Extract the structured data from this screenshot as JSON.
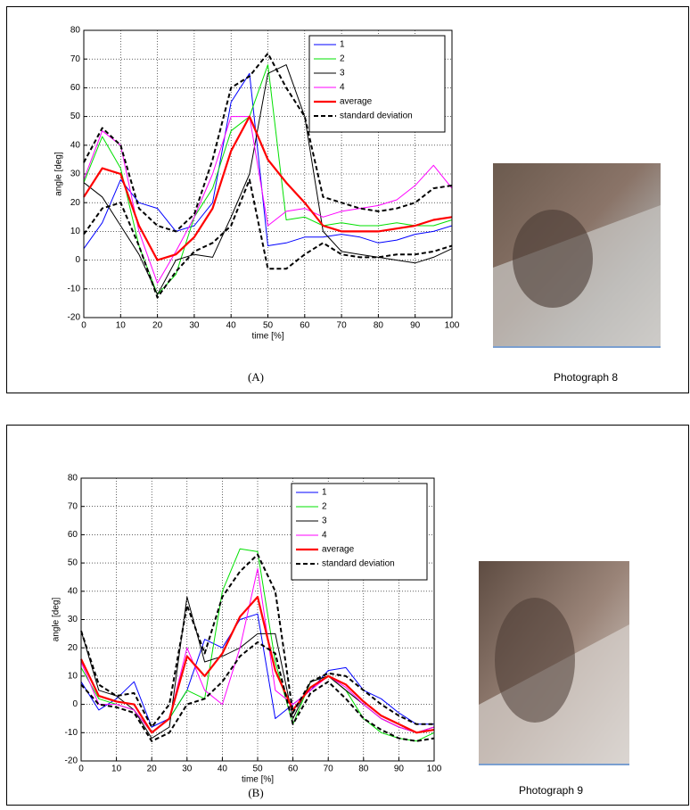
{
  "chart_data": [
    {
      "type": "line",
      "caption": "(A)",
      "photo_caption": "Photograph 8",
      "xlabel": "time [%]",
      "ylabel": "angle [deg]",
      "xlim": [
        0,
        100
      ],
      "ylim": [
        -20,
        80
      ],
      "xticks": [
        0,
        10,
        20,
        30,
        40,
        50,
        60,
        70,
        80,
        90,
        100
      ],
      "yticks": [
        -20,
        -10,
        0,
        10,
        20,
        30,
        40,
        50,
        60,
        70,
        80
      ],
      "grid": true,
      "legend": "upper right",
      "x": [
        0,
        5,
        10,
        15,
        20,
        25,
        30,
        35,
        40,
        45,
        50,
        55,
        60,
        65,
        70,
        75,
        80,
        85,
        90,
        95,
        100
      ],
      "series": [
        {
          "name": "1",
          "color": "#0000ff",
          "values": [
            4,
            13,
            28,
            20,
            18,
            10,
            12,
            20,
            55,
            65,
            5,
            6,
            8,
            8,
            9,
            8,
            6,
            7,
            9,
            10,
            12
          ]
        },
        {
          "name": "2",
          "color": "#00e000",
          "values": [
            27,
            43,
            32,
            5,
            -12,
            -5,
            15,
            25,
            45,
            50,
            68,
            14,
            15,
            12,
            13,
            12,
            12,
            13,
            12,
            12,
            14
          ]
        },
        {
          "name": "3",
          "color": "#000000",
          "values": [
            27,
            22,
            12,
            2,
            -12,
            0,
            2,
            1,
            15,
            30,
            65,
            68,
            50,
            10,
            3,
            2,
            1,
            0,
            -1,
            1,
            4
          ]
        },
        {
          "name": "4",
          "color": "#ff00ff",
          "values": [
            28,
            45,
            40,
            10,
            -8,
            3,
            15,
            30,
            50,
            50,
            12,
            17,
            18,
            15,
            17,
            18,
            19,
            21,
            26,
            33,
            25
          ]
        },
        {
          "name": "average",
          "color": "#ff0000",
          "values": [
            22,
            32,
            30,
            12,
            0,
            2,
            8,
            18,
            38,
            50,
            35,
            27,
            20,
            12,
            10,
            10,
            10,
            11,
            12,
            14,
            15
          ]
        },
        {
          "name": "standard deviation",
          "color": "#000000",
          "dashed": true,
          "values": [
            34,
            46,
            40,
            18,
            12,
            10,
            16,
            35,
            60,
            64,
            72,
            60,
            50,
            22,
            20,
            18,
            17,
            18,
            20,
            25,
            26
          ],
          "lower": [
            9,
            18,
            20,
            5,
            -13,
            -4,
            3,
            6,
            12,
            28,
            -3,
            -3,
            2,
            6,
            2,
            1,
            1,
            2,
            2,
            3,
            5
          ]
        }
      ]
    },
    {
      "type": "line",
      "caption": "(B)",
      "photo_caption": "Photograph 9",
      "xlabel": "time [%]",
      "ylabel": "angle [deg]",
      "xlim": [
        0,
        100
      ],
      "ylim": [
        -20,
        80
      ],
      "xticks": [
        0,
        10,
        20,
        30,
        40,
        50,
        60,
        70,
        80,
        90,
        100
      ],
      "yticks": [
        -20,
        -10,
        0,
        10,
        20,
        30,
        40,
        50,
        60,
        70,
        80
      ],
      "grid": true,
      "legend": "upper right",
      "x": [
        0,
        5,
        10,
        15,
        20,
        25,
        30,
        35,
        40,
        45,
        50,
        55,
        60,
        65,
        70,
        75,
        80,
        85,
        90,
        95,
        100
      ],
      "series": [
        {
          "name": "1",
          "color": "#0000ff",
          "values": [
            8,
            -2,
            2,
            8,
            -8,
            -5,
            5,
            23,
            20,
            30,
            32,
            -5,
            0,
            5,
            12,
            13,
            5,
            2,
            -3,
            -7,
            -7
          ]
        },
        {
          "name": "2",
          "color": "#00e000",
          "values": [
            13,
            2,
            0,
            -2,
            -10,
            -5,
            5,
            2,
            40,
            55,
            54,
            15,
            -7,
            8,
            10,
            5,
            -5,
            -10,
            -12,
            -13,
            -10
          ]
        },
        {
          "name": "3",
          "color": "#000000",
          "values": [
            26,
            5,
            3,
            -2,
            -12,
            -8,
            38,
            15,
            17,
            20,
            25,
            25,
            -5,
            8,
            10,
            5,
            0,
            -5,
            -8,
            -10,
            -8
          ]
        },
        {
          "name": "4",
          "color": "#ff00ff",
          "values": [
            15,
            0,
            0,
            -2,
            -10,
            -5,
            20,
            5,
            0,
            20,
            48,
            5,
            0,
            5,
            10,
            6,
            0,
            -5,
            -8,
            -10,
            -8
          ]
        },
        {
          "name": "average",
          "color": "#ff0000",
          "values": [
            16,
            3,
            1,
            0,
            -10,
            -5,
            17,
            10,
            18,
            31,
            38,
            12,
            -2,
            6,
            10,
            7,
            1,
            -4,
            -7,
            -10,
            -9
          ]
        },
        {
          "name": "standard deviation",
          "color": "#000000",
          "dashed": true,
          "values": [
            26,
            7,
            3,
            4,
            -8,
            0,
            35,
            18,
            38,
            47,
            53,
            40,
            -3,
            8,
            11,
            10,
            5,
            0,
            -4,
            -7,
            -7
          ],
          "lower": [
            7,
            0,
            -1,
            -3,
            -13,
            -10,
            0,
            2,
            8,
            17,
            22,
            18,
            -7,
            4,
            8,
            2,
            -5,
            -9,
            -12,
            -13,
            -12
          ]
        }
      ]
    }
  ]
}
